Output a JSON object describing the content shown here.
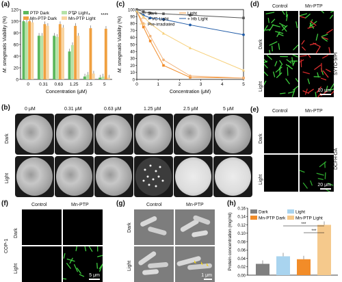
{
  "panel_labels": {
    "a": "(a)",
    "b": "(b)",
    "c": "(c)",
    "d": "(d)",
    "e": "(e)",
    "f": "(f)",
    "g": "(g)",
    "h": "(h)"
  },
  "chart_data": [
    {
      "id": "a",
      "type": "bar",
      "ylabel_italic": "M. smegmatis",
      "ylabel_rest": " Viability (%)",
      "xlabel": "Concentration (μM)",
      "categories": [
        "0",
        "0.31",
        "0.63",
        "1.25",
        "2.5",
        "5"
      ],
      "ylim": [
        0,
        120
      ],
      "yticks": [
        "0",
        "20",
        "40",
        "60",
        "80",
        "100",
        "120"
      ],
      "series": [
        {
          "name": "PTP Dark",
          "color": "#5cb85c",
          "values": [
            100,
            75,
            75,
            48,
            5,
            3
          ]
        },
        {
          "name": "PTP Light",
          "color": "#b5e2a6",
          "values": [
            98,
            75,
            73,
            59,
            8,
            5
          ]
        },
        {
          "name": "Mn-PTP Dark",
          "color": "#f0a040",
          "values": [
            100,
            95,
            95,
            92,
            88,
            87
          ]
        },
        {
          "name": "Mn-PTP Light",
          "color": "#f8d4a0",
          "values": [
            98,
            92,
            89,
            75,
            10,
            3
          ]
        }
      ],
      "significance": [
        {
          "category": "1.25",
          "label": "*"
        },
        {
          "category": "2.5",
          "label": "*"
        },
        {
          "category": "5",
          "label": "****"
        }
      ]
    },
    {
      "id": "c",
      "type": "line",
      "ylabel_italic": "M. smegmatis",
      "ylabel_rest": " Viability (%)",
      "xlabel": "Concentration (μM)",
      "xlim": [
        0,
        5
      ],
      "ylim": [
        0,
        100
      ],
      "xticks": [
        "0",
        "1",
        "2",
        "3",
        "4",
        "5"
      ],
      "yticks": [
        "0",
        "10",
        "20",
        "30",
        "40",
        "50",
        "60",
        "70",
        "80",
        "90",
        "100"
      ],
      "series": [
        {
          "name": "Dark",
          "color": "#555555",
          "marker": "square",
          "x": [
            0,
            0.31,
            0.63,
            1.25,
            2.5,
            5
          ],
          "y": [
            100,
            97,
            95,
            94,
            92,
            88
          ]
        },
        {
          "name": "Light",
          "color": "#f28c28",
          "marker": "square",
          "x": [
            0,
            0.31,
            0.63,
            1.25,
            2.5,
            5
          ],
          "y": [
            98,
            75,
            55,
            20,
            3,
            2
          ]
        },
        {
          "name": "+ VC Light",
          "color": "#f2b37a",
          "marker": "circle",
          "x": [
            0,
            0.31,
            0.63,
            1.25,
            2.5,
            5
          ],
          "y": [
            98,
            80,
            62,
            28,
            5,
            2
          ]
        },
        {
          "name": "+ Hb Light",
          "color": "#1f5aa6",
          "marker": "circle",
          "x": [
            0,
            0.31,
            0.63,
            1.25,
            2.5,
            5
          ],
          "y": [
            98,
            92,
            88,
            86,
            78,
            64
          ]
        },
        {
          "name": "Pre-irradiated",
          "color": "#f7d07a",
          "marker": "triangle",
          "x": [
            0,
            0.31,
            0.63,
            1.25,
            2.5,
            5
          ],
          "y": [
            98,
            90,
            80,
            66,
            45,
            13
          ]
        }
      ]
    },
    {
      "id": "h",
      "type": "bar",
      "ylabel": "Protein concentration (mg/ml)",
      "ylim": [
        0,
        0.16
      ],
      "yticks": [
        "0.00",
        "0.02",
        "0.04",
        "0.06",
        "0.08",
        "0.10",
        "0.12",
        "0.14",
        "0.16"
      ],
      "series": [
        {
          "name": "Dark",
          "color": "#7f7f7f",
          "value": 0.027
        },
        {
          "name": "Light",
          "color": "#a9d4ef",
          "value": 0.045
        },
        {
          "name": "Mn-PTP Dark",
          "color": "#f28c28",
          "value": 0.038
        },
        {
          "name": "Mn-PTP Light",
          "color": "#f5c98c",
          "value": 0.12
        }
      ],
      "significance": [
        "***",
        "***"
      ]
    }
  ],
  "panel_b": {
    "columns": [
      "0 μM",
      "0.31 μM",
      "0.63 μM",
      "1.25 μM",
      "2.5 μM",
      "5 μM"
    ],
    "rows": [
      "Dark",
      "Light"
    ]
  },
  "panel_d": {
    "columns": [
      "Control",
      "Mn-PTP"
    ],
    "rows": [
      "Dark",
      "Light"
    ],
    "side_label": "SYTO-9/PI",
    "scale": "10 μm"
  },
  "panel_e": {
    "columns": [
      "Control",
      "Mn-PTP"
    ],
    "rows": [
      "Dark",
      "Light"
    ],
    "side_label": "DCFH-DA",
    "scale": "20 μm"
  },
  "panel_f": {
    "columns": [
      "Control",
      "Mn-PTP"
    ],
    "rows": [
      "Dark",
      "Light"
    ],
    "side_label": "COP-1",
    "scale": "5 μm"
  },
  "panel_g": {
    "columns": [
      "Control",
      "Mn-PTP"
    ],
    "rows": [
      "Dark",
      "Light"
    ],
    "scale": "1 μm"
  }
}
